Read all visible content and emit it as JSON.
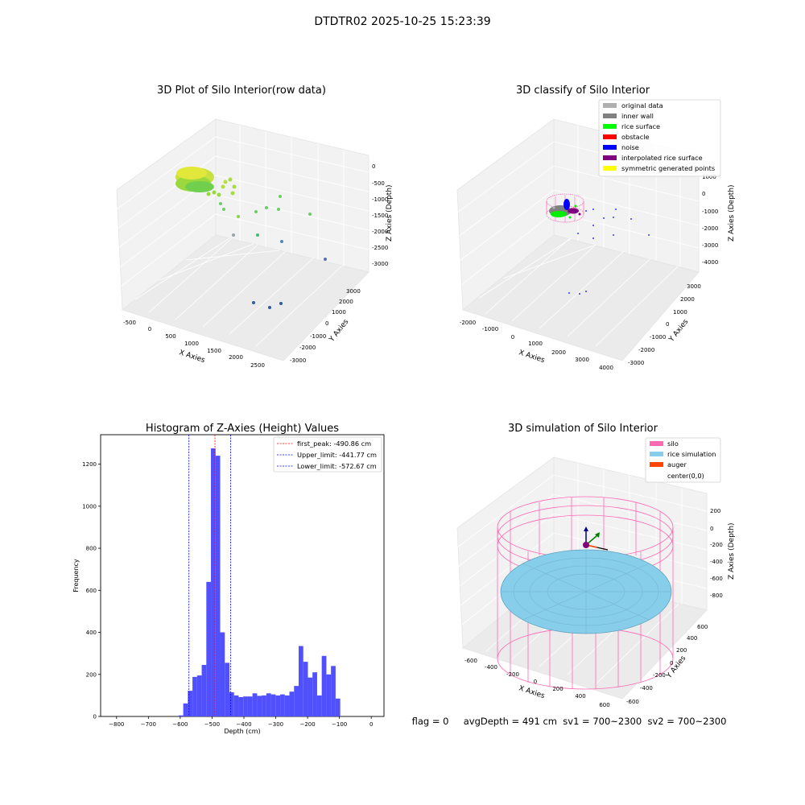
{
  "suptitle": "DTDTR02 2025-10-25 15:23:39",
  "plots": {
    "raw": {
      "title": "3D Plot of Silo Interior(row data)",
      "xlabel": "X Axies",
      "ylabel": "Y Axies",
      "zlabel": "Z Axies (Depth)",
      "xticks": [
        "-500",
        "0",
        "500",
        "1000",
        "1500",
        "2000",
        "2500"
      ],
      "yticks": [
        "-3000",
        "-2000",
        "-1000",
        "0",
        "1000",
        "2000",
        "3000"
      ],
      "zticks": [
        "-3000",
        "-2500",
        "-2000",
        "-1500",
        "-1000",
        "-500",
        "0"
      ]
    },
    "classify": {
      "title": "3D classify of Silo Interior",
      "xlabel": "X Axies",
      "ylabel": "Y Axies",
      "zlabel": "Z Axies (Depth)",
      "xticks": [
        "-2000",
        "-1000",
        "0",
        "1000",
        "2000",
        "3000",
        "4000"
      ],
      "yticks": [
        "-3000",
        "-2000",
        "-1000",
        "0",
        "1000",
        "2000",
        "3000"
      ],
      "zticks": [
        "-4000",
        "-3000",
        "-2000",
        "-1000",
        "0",
        "1000"
      ],
      "legend": [
        {
          "label": "original data",
          "color": "#b0b0b0"
        },
        {
          "label": "inner wall",
          "color": "#808080"
        },
        {
          "label": "rice surface",
          "color": "#00ff00"
        },
        {
          "label": "obstacle",
          "color": "#ff0000"
        },
        {
          "label": "noise",
          "color": "#0000ff"
        },
        {
          "label": "interpolated rice surface",
          "color": "#800080"
        },
        {
          "label": "symmetric generated points",
          "color": "#ffff00"
        }
      ]
    },
    "simulation": {
      "title": "3D simulation of Silo Interior",
      "xlabel": "X Axies",
      "ylabel": "Y Axies",
      "zlabel": "Z Axies (Depth)",
      "xticks": [
        "-600",
        "-400",
        "-200",
        "0",
        "200",
        "400",
        "600"
      ],
      "yticks": [
        "-600",
        "-400",
        "-200",
        "0",
        "200",
        "400",
        "600"
      ],
      "zticks": [
        "-800",
        "-600",
        "-400",
        "-200",
        "0",
        "200"
      ],
      "legend": [
        {
          "label": "silo",
          "color": "#ff69b4"
        },
        {
          "label": "rice simulation",
          "color": "#87ceeb"
        },
        {
          "label": "auger",
          "color": "#ff4500"
        },
        {
          "label": "center(0,0)",
          "color": ""
        }
      ],
      "footer": "flag = 0     avgDepth = 491 cm  sv1 = 700~2300  sv2 = 700~2300"
    }
  },
  "chart_data": {
    "type": "bar",
    "title": "Histogram of Z-Axies (Height) Values",
    "xlabel": "Depth (cm)",
    "ylabel": "Frequency",
    "xlim": [
      -850,
      40
    ],
    "ylim": [
      0,
      1340
    ],
    "xticks": [
      -800,
      -700,
      -600,
      -500,
      -400,
      -300,
      -200,
      -100,
      0
    ],
    "yticks": [
      0,
      200,
      400,
      600,
      800,
      1000,
      1200
    ],
    "bin_start": -605,
    "bin_width": 14.5,
    "values": [
      5,
      62,
      122,
      188,
      195,
      245,
      640,
      1275,
      1240,
      400,
      255,
      115,
      100,
      92,
      95,
      95,
      110,
      98,
      100,
      110,
      105,
      100,
      105,
      100,
      118,
      145,
      335,
      260,
      185,
      210,
      100,
      288,
      200,
      240,
      85
    ],
    "bar_color": "#5050ff",
    "lines": [
      {
        "label": "first_peak: -490.86 cm",
        "x": -490.86,
        "color": "#ff0000"
      },
      {
        "label": "Upper_limit: -441.77 cm",
        "x": -441.77,
        "color": "#0000ff"
      },
      {
        "label": "Lower_limit: -572.67 cm",
        "x": -572.67,
        "color": "#0000ff"
      }
    ],
    "legend_position": "top-right",
    "grid": false
  }
}
